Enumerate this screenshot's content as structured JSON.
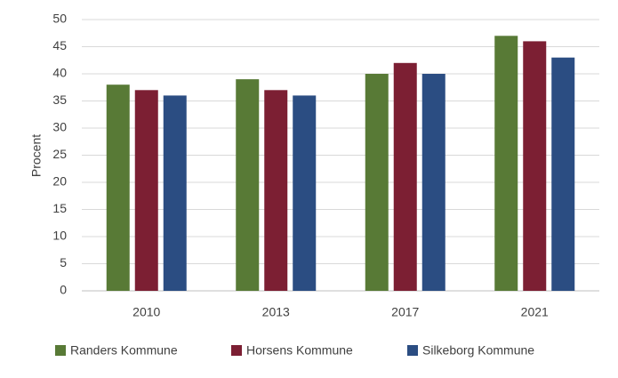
{
  "chart_data": {
    "type": "bar",
    "y_label": "Procent",
    "categories": [
      "2010",
      "2013",
      "2017",
      "2021"
    ],
    "series": [
      {
        "name": "Randers Kommune",
        "color": "#587a36",
        "values": [
          38,
          39,
          40,
          47
        ]
      },
      {
        "name": "Horsens Kommune",
        "color": "#7c1f33",
        "values": [
          37,
          37,
          42,
          46
        ]
      },
      {
        "name": "Silkeborg Kommune",
        "color": "#2b4d82",
        "values": [
          36,
          36,
          40,
          43
        ]
      }
    ],
    "ylim": [
      0,
      50
    ],
    "yticks": [
      0,
      5,
      10,
      15,
      20,
      25,
      30,
      35,
      40,
      45,
      50
    ],
    "grid": true,
    "legend": "bottom"
  }
}
